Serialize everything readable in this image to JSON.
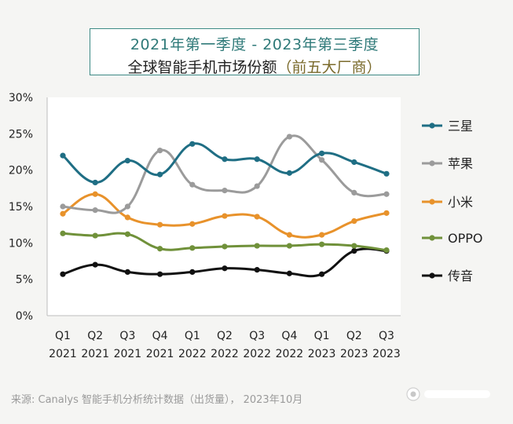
{
  "title": {
    "line1": "2021年第一季度 - 2023年第三季度",
    "line2_main": "全球智能手机市场份额",
    "line2_paren_open": "（",
    "line2_paren_text": "前五大厂商",
    "line2_paren_close": "）"
  },
  "source": "来源: Canalys 智能手机分析统计数据（出货量）， 2023年10月",
  "chart_data": {
    "type": "line",
    "x": [
      {
        "q": "Q1",
        "y": "2021"
      },
      {
        "q": "Q2",
        "y": "2021"
      },
      {
        "q": "Q3",
        "y": "2021"
      },
      {
        "q": "Q4",
        "y": "2021"
      },
      {
        "q": "Q1",
        "y": "2022"
      },
      {
        "q": "Q2",
        "y": "2022"
      },
      {
        "q": "Q3",
        "y": "2022"
      },
      {
        "q": "Q4",
        "y": "2022"
      },
      {
        "q": "Q1",
        "y": "2023"
      },
      {
        "q": "Q2",
        "y": "2023"
      },
      {
        "q": "Q3",
        "y": "2023"
      }
    ],
    "yticks": [
      "0%",
      "5%",
      "10%",
      "15%",
      "20%",
      "25%",
      "30%"
    ],
    "ylim": [
      0,
      30
    ],
    "legend_position": "right",
    "grid": false,
    "series": [
      {
        "name": "三星",
        "color": "#1f6e84",
        "values": [
          22,
          18.3,
          21.3,
          19.4,
          23.6,
          21.5,
          21.5,
          19.6,
          22.3,
          21.1,
          19.5
        ]
      },
      {
        "name": "苹果",
        "color": "#9b9b9b",
        "values": [
          15,
          14.5,
          15,
          22.7,
          18,
          17.2,
          17.8,
          24.6,
          21.4,
          16.9,
          16.7
        ]
      },
      {
        "name": "小米",
        "color": "#e8922b",
        "values": [
          14,
          16.7,
          13.5,
          12.5,
          12.6,
          13.7,
          13.6,
          11.1,
          11.1,
          13,
          14.1
        ]
      },
      {
        "name": "OPPO",
        "color": "#70913a",
        "values": [
          11.3,
          11,
          11.2,
          9.2,
          9.3,
          9.5,
          9.6,
          9.6,
          9.8,
          9.6,
          9
        ]
      },
      {
        "name": "传音",
        "color": "#111111",
        "values": [
          5.7,
          7,
          6,
          5.7,
          6,
          6.5,
          6.3,
          5.8,
          5.7,
          8.9,
          8.9
        ]
      }
    ]
  }
}
